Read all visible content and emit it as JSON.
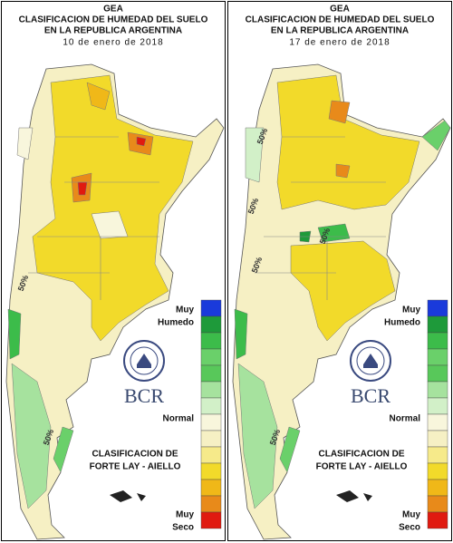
{
  "legend_colors": [
    "#1a3adb",
    "#1e9a3a",
    "#3cbc4a",
    "#6ad06a",
    "#58c85a",
    "#a6e29e",
    "#d2f0c8",
    "#f8f6dc",
    "#f6f0c4",
    "#f6ea8a",
    "#f2da2a",
    "#f0b818",
    "#e88a1a",
    "#e01a10"
  ],
  "panels": [
    {
      "agency": "GEA",
      "title_line1": "CLASIFICACION DE HUMEDAD DEL SUELO",
      "title_line2": "EN LA REPUBLICA ARGENTINA",
      "date": "10 de enero de 2018",
      "legend_top": [
        "Muy",
        "Humedo"
      ],
      "legend_middle": "Normal",
      "legend_bottom": [
        "Muy",
        "Seco"
      ],
      "logo": "BCR",
      "method": [
        "CLASIFICACION DE",
        "FORTE LAY - AIELLO"
      ],
      "contour_labels": [
        "50%",
        "50%"
      ]
    },
    {
      "agency": "GEA",
      "title_line1": "CLASIFICACION DE HUMEDAD DEL SUELO",
      "title_line2": "EN LA REPUBLICA ARGENTINA",
      "date": "17 de enero de 2018",
      "legend_top": [
        "Muy",
        "Humedo"
      ],
      "legend_middle": "Normal",
      "legend_bottom": [
        "Muy",
        "Seco"
      ],
      "logo": "BCR",
      "method": [
        "CLASIFICACION DE",
        "FORTE LAY - AIELLO"
      ],
      "contour_labels": [
        "50%",
        "50%",
        "50%",
        "50%",
        "50%"
      ]
    }
  ]
}
